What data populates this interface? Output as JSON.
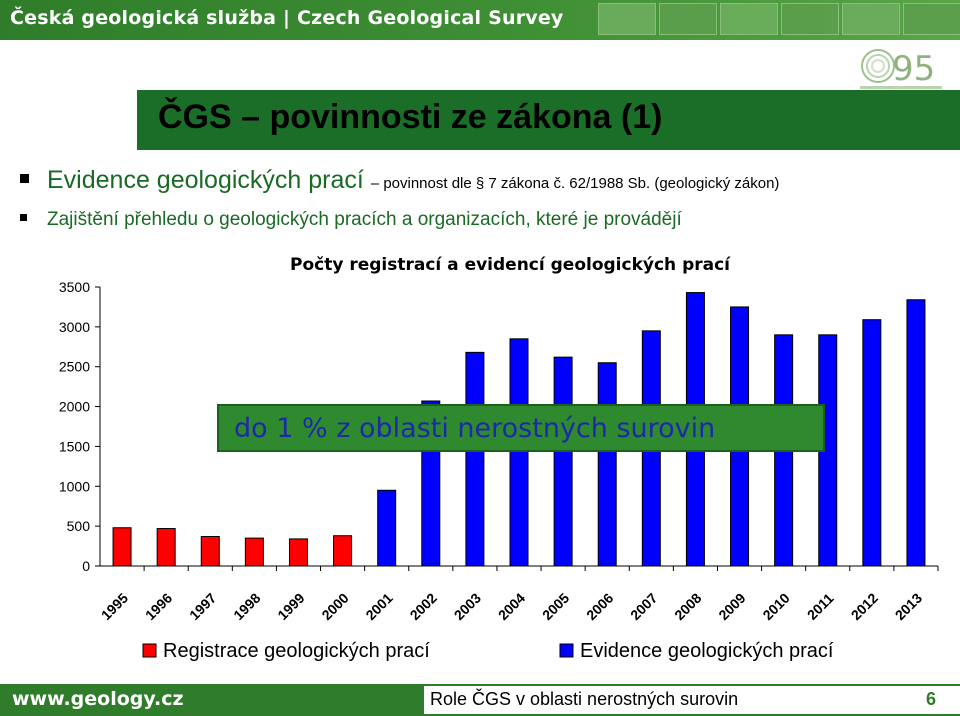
{
  "header": {
    "title": "Česká geologická služba | Czech Geological Survey",
    "logo_text": "95"
  },
  "slide": {
    "title": "ČGS – povinnosti ze zákona (1)",
    "bullet1_main": "Evidence geologických prací",
    "bullet1_detail": "– povinnost dle § 7 zákona č. 62/1988 Sb. (geologický zákon)",
    "bullet2": "Zajištění přehledu o geologických pracích a organizacích, které je provádějí",
    "note": "do 1 % z oblasti nerostných surovin"
  },
  "footer": {
    "url": "www.geology.cz",
    "caption": "Role ČGS v oblasti nerostných surovin",
    "page": "6"
  },
  "colors": {
    "green": "#2f7d2a",
    "title_bar": "#1b6e28",
    "registrace": "#ff0000",
    "evidence": "#0000ff"
  },
  "chart_data": {
    "type": "bar",
    "title": "Počty registrací a evidencí geologických prací",
    "categories": [
      "1995",
      "1996",
      "1997",
      "1998",
      "1999",
      "2000",
      "2001",
      "2002",
      "2003",
      "2004",
      "2005",
      "2006",
      "2007",
      "2008",
      "2009",
      "2010",
      "2011",
      "2012",
      "2013"
    ],
    "series": [
      {
        "name": "Registrace geologických prací",
        "color": "#ff0000",
        "values": [
          480,
          470,
          370,
          350,
          340,
          380,
          null,
          null,
          null,
          null,
          null,
          null,
          null,
          null,
          null,
          null,
          null,
          null,
          null
        ]
      },
      {
        "name": "Evidence geologických prací",
        "color": "#0000ff",
        "values": [
          null,
          null,
          null,
          null,
          null,
          null,
          950,
          2070,
          2680,
          2850,
          2620,
          2550,
          2950,
          3430,
          3250,
          2900,
          2900,
          3090,
          3340
        ]
      }
    ],
    "yticks": [
      0,
      500,
      1000,
      1500,
      2000,
      2500,
      3000,
      3500
    ],
    "ylim": [
      0,
      3500
    ],
    "legend_position": "bottom",
    "grid": false
  }
}
